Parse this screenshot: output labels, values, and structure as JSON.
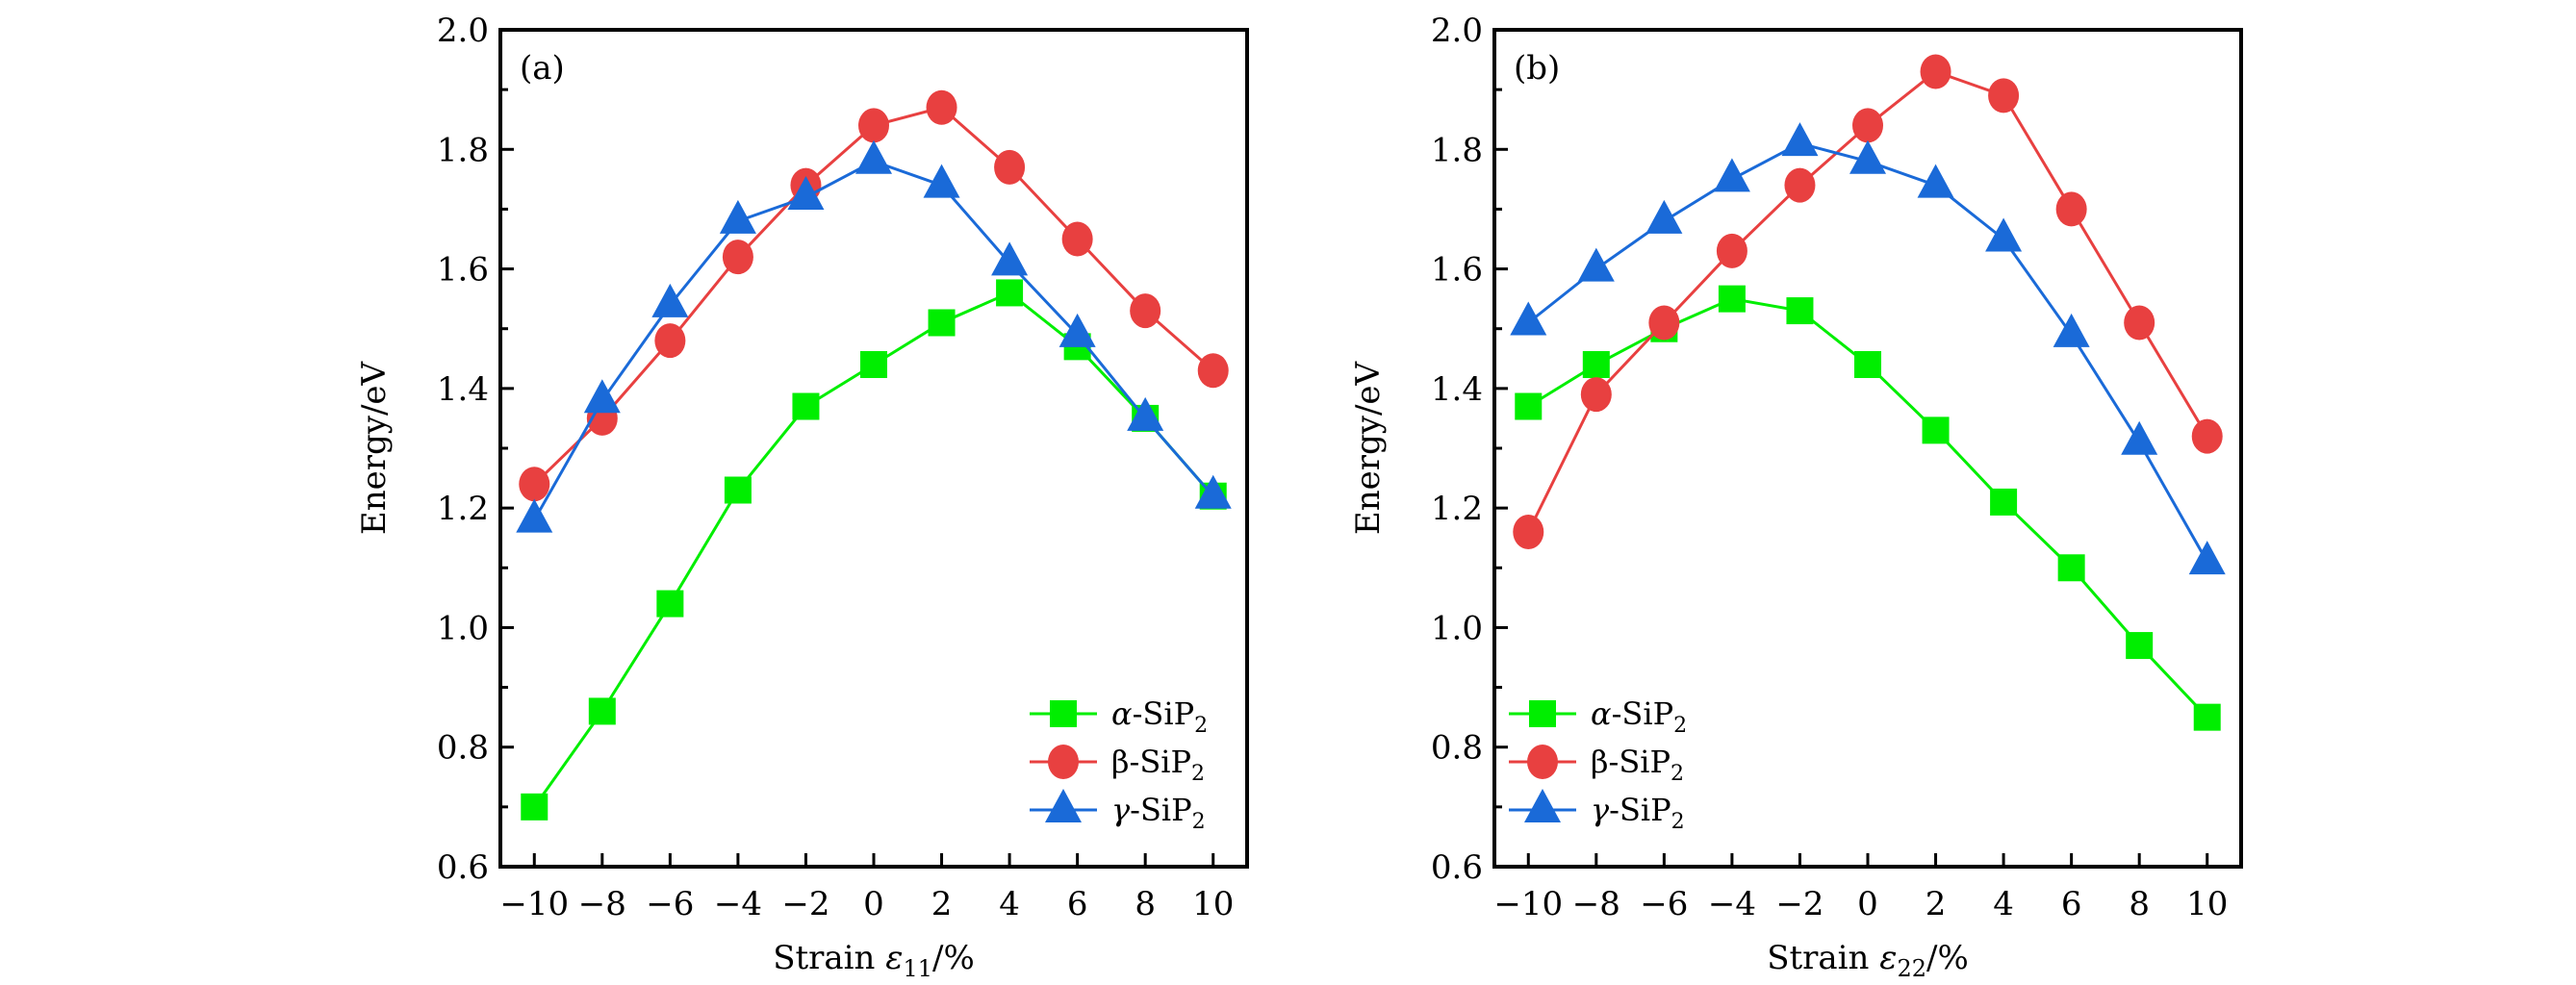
{
  "chart_data": [
    {
      "type": "line",
      "panel_label": "(a)",
      "xlabel": "Strain ε11/%",
      "xlabel_parts": {
        "prefix": "Strain ",
        "symbol": "ε",
        "subscript": "11",
        "suffix": "/%"
      },
      "ylabel": "Energy/eV",
      "x": [
        -10,
        -8,
        -6,
        -4,
        -2,
        0,
        2,
        4,
        6,
        8,
        10
      ],
      "x_tick_labels": [
        "−10",
        "−8",
        "−6",
        "−4",
        "−2",
        "0",
        "2",
        "4",
        "6",
        "8",
        "10"
      ],
      "xlim": [
        -11,
        11
      ],
      "ylim": [
        0.6,
        2.0
      ],
      "y_ticks": [
        0.6,
        0.8,
        1.0,
        1.2,
        1.4,
        1.6,
        1.8,
        2.0
      ],
      "y_tick_labels": [
        "0.6",
        "0.8",
        "1.0",
        "1.2",
        "1.4",
        "1.6",
        "1.8",
        "2.0"
      ],
      "y_minor_ticks": [
        0.7,
        0.9,
        1.1,
        1.3,
        1.5,
        1.7,
        1.9
      ],
      "grid": false,
      "legend_position": "bottom-right",
      "series": [
        {
          "name": "α-SiP2",
          "greek": "α",
          "base": "-SiP",
          "sub": "2",
          "marker": "square",
          "color": "#00ee00",
          "values": [
            0.7,
            0.86,
            1.04,
            1.23,
            1.37,
            1.44,
            1.51,
            1.56,
            1.47,
            1.35,
            1.22
          ]
        },
        {
          "name": "β-SiP2",
          "greek": "β",
          "base": "-SiP",
          "sub": "2",
          "marker": "circle",
          "color": "#e84040",
          "values": [
            1.24,
            1.35,
            1.48,
            1.62,
            1.74,
            1.84,
            1.87,
            1.77,
            1.65,
            1.53,
            1.43
          ]
        },
        {
          "name": "γ-SiP2",
          "greek": "γ",
          "base": "-SiP",
          "sub": "2",
          "marker": "triangle",
          "color": "#1a6ad8",
          "values": [
            1.18,
            1.38,
            1.54,
            1.68,
            1.72,
            1.78,
            1.74,
            1.61,
            1.49,
            1.35,
            1.22
          ]
        }
      ]
    },
    {
      "type": "line",
      "panel_label": "(b)",
      "xlabel": "Strain ε22/%",
      "xlabel_parts": {
        "prefix": "Strain ",
        "symbol": "ε",
        "subscript": "22",
        "suffix": "/%"
      },
      "ylabel": "Energy/eV",
      "x": [
        -10,
        -8,
        -6,
        -4,
        -2,
        0,
        2,
        4,
        6,
        8,
        10
      ],
      "x_tick_labels": [
        "−10",
        "−8",
        "−6",
        "−4",
        "−2",
        "0",
        "2",
        "4",
        "6",
        "8",
        "10"
      ],
      "xlim": [
        -11,
        11
      ],
      "ylim": [
        0.6,
        2.0
      ],
      "y_ticks": [
        0.6,
        0.8,
        1.0,
        1.2,
        1.4,
        1.6,
        1.8,
        2.0
      ],
      "y_tick_labels": [
        "0.6",
        "0.8",
        "1.0",
        "1.2",
        "1.4",
        "1.6",
        "1.8",
        "2.0"
      ],
      "y_minor_ticks": [
        0.7,
        0.9,
        1.1,
        1.3,
        1.5,
        1.7,
        1.9
      ],
      "grid": false,
      "legend_position": "bottom-left",
      "series": [
        {
          "name": "α-SiP2",
          "greek": "α",
          "base": "-SiP",
          "sub": "2",
          "marker": "square",
          "color": "#00ee00",
          "values": [
            1.37,
            1.44,
            1.5,
            1.55,
            1.53,
            1.44,
            1.33,
            1.21,
            1.1,
            0.97,
            0.85
          ]
        },
        {
          "name": "β-SiP2",
          "greek": "β",
          "base": "-SiP",
          "sub": "2",
          "marker": "circle",
          "color": "#e84040",
          "values": [
            1.16,
            1.39,
            1.51,
            1.63,
            1.74,
            1.84,
            1.93,
            1.89,
            1.7,
            1.51,
            1.32
          ]
        },
        {
          "name": "γ-SiP2",
          "greek": "γ",
          "base": "-SiP",
          "sub": "2",
          "marker": "triangle",
          "color": "#1a6ad8",
          "values": [
            1.51,
            1.6,
            1.68,
            1.75,
            1.81,
            1.78,
            1.74,
            1.65,
            1.49,
            1.31,
            1.11
          ]
        }
      ]
    }
  ]
}
